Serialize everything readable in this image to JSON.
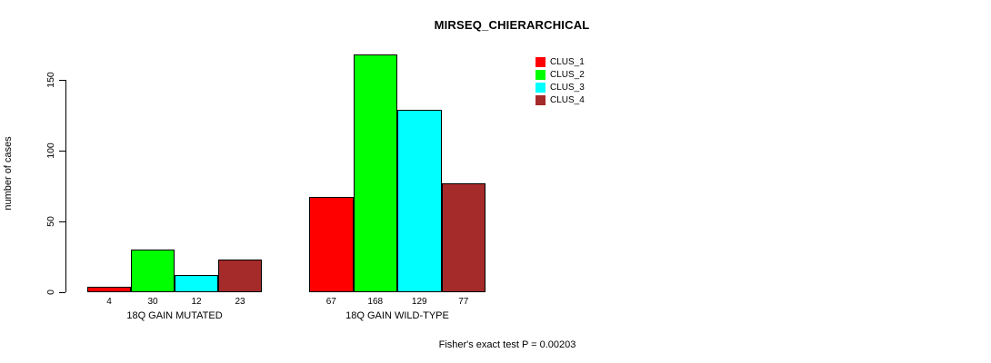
{
  "chart_data": {
    "type": "bar",
    "title": "MIRSEQ_CHIERARCHICAL",
    "ylabel": "number of cases",
    "xlabel": "",
    "footer": "Fisher's exact test P = 0.00203",
    "categories": [
      "18Q GAIN MUTATED",
      "18Q GAIN WILD-TYPE"
    ],
    "series": [
      {
        "name": "CLUS_1",
        "color": "#FF0000",
        "values": [
          4,
          67
        ]
      },
      {
        "name": "CLUS_2",
        "color": "#00FF00",
        "values": [
          30,
          168
        ]
      },
      {
        "name": "CLUS_3",
        "color": "#00FFFF",
        "values": [
          12,
          129
        ]
      },
      {
        "name": "CLUS_4",
        "color": "#A52A2A",
        "values": [
          23,
          77
        ]
      }
    ],
    "value_labels_shown": true,
    "yticks": [
      0,
      50,
      100,
      150
    ],
    "ylim": [
      0,
      168
    ],
    "grid": false,
    "legend_position": "top-right",
    "bar_border_color": "#000000",
    "text_color": "#000000"
  }
}
